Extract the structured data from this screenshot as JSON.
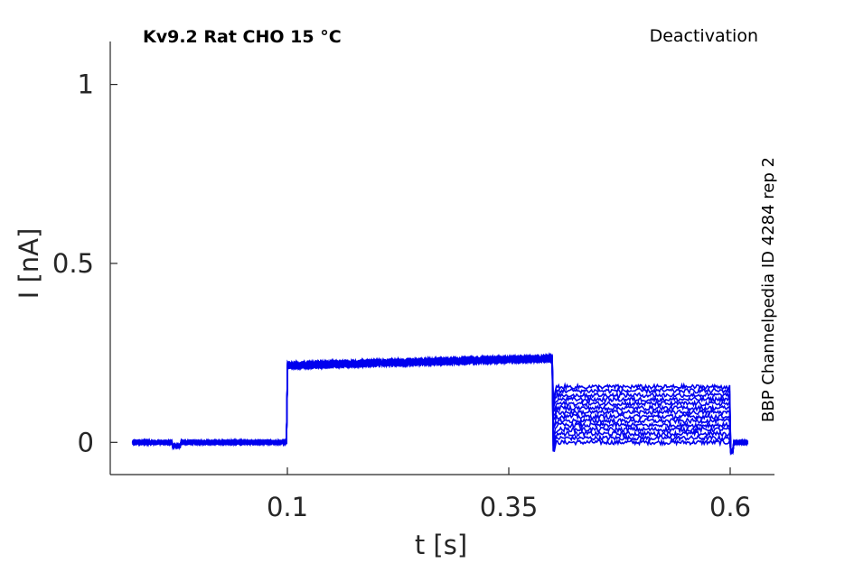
{
  "chart_data": {
    "type": "line",
    "title": "Kv9.2  Rat  CHO  15 °C",
    "subtitle": "Deactivation",
    "side_label": "BBP Channelpedia ID 4284 rep 2",
    "xlabel": "t [s]",
    "ylabel": "I [nA]",
    "xlim": [
      -0.1,
      0.65
    ],
    "ylim": [
      -0.09,
      1.12
    ],
    "x_ticks": [
      0.1,
      0.35,
      0.6
    ],
    "x_tick_labels": [
      "0.1",
      "0.35",
      "0.6"
    ],
    "y_ticks": [
      0,
      0.5,
      1
    ],
    "y_tick_labels": [
      "0",
      "0.5",
      "1"
    ],
    "grid": false,
    "line_color": "#0000ee",
    "protocol": {
      "t_start": -0.075,
      "t_step_on": 0.1,
      "t_step2": 0.4,
      "t_step_off": 0.6,
      "t_end": 0.62,
      "baseline": 0.0,
      "plateau_start": 0.215,
      "plateau_end": 0.235
    },
    "series": [
      {
        "tail_level": 0.0
      },
      {
        "tail_level": 0.012
      },
      {
        "tail_level": 0.024
      },
      {
        "tail_level": 0.036
      },
      {
        "tail_level": 0.048
      },
      {
        "tail_level": 0.06
      },
      {
        "tail_level": 0.072
      },
      {
        "tail_level": 0.084
      },
      {
        "tail_level": 0.096
      },
      {
        "tail_level": 0.108
      },
      {
        "tail_level": 0.12
      },
      {
        "tail_level": 0.132
      },
      {
        "tail_level": 0.144
      },
      {
        "tail_level": 0.155
      }
    ]
  }
}
